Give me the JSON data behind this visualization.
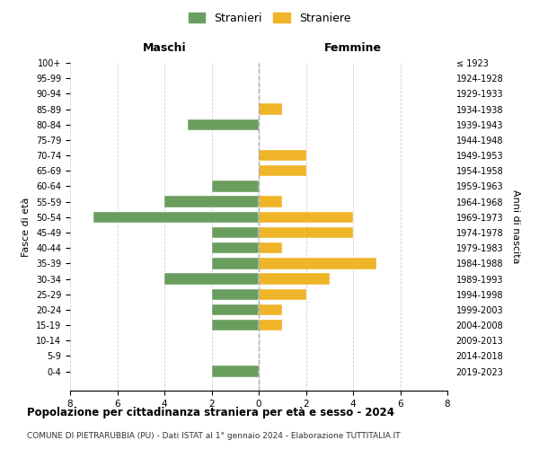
{
  "age_groups": [
    "100+",
    "95-99",
    "90-94",
    "85-89",
    "80-84",
    "75-79",
    "70-74",
    "65-69",
    "60-64",
    "55-59",
    "50-54",
    "45-49",
    "40-44",
    "35-39",
    "30-34",
    "25-29",
    "20-24",
    "15-19",
    "10-14",
    "5-9",
    "0-4"
  ],
  "birth_years": [
    "≤ 1923",
    "1924-1928",
    "1929-1933",
    "1934-1938",
    "1939-1943",
    "1944-1948",
    "1949-1953",
    "1954-1958",
    "1959-1963",
    "1964-1968",
    "1969-1973",
    "1974-1978",
    "1979-1983",
    "1984-1988",
    "1989-1993",
    "1994-1998",
    "1999-2003",
    "2004-2008",
    "2009-2013",
    "2014-2018",
    "2019-2023"
  ],
  "maschi": [
    0,
    0,
    0,
    0,
    3,
    0,
    0,
    0,
    2,
    4,
    7,
    2,
    2,
    2,
    4,
    2,
    2,
    2,
    0,
    0,
    2
  ],
  "femmine": [
    0,
    0,
    0,
    1,
    0,
    0,
    2,
    2,
    0,
    1,
    4,
    4,
    1,
    5,
    3,
    2,
    1,
    1,
    0,
    0,
    0
  ],
  "color_maschi": "#6a9e5e",
  "color_femmine": "#f0b429",
  "background_color": "#ffffff",
  "grid_color": "#d0d0d0",
  "title": "Popolazione per cittadinanza straniera per età e sesso - 2024",
  "subtitle": "COMUNE DI PIETRARUBBIA (PU) - Dati ISTAT al 1° gennaio 2024 - Elaborazione TUTTITALIA.IT",
  "xlabel_left": "Maschi",
  "xlabel_right": "Femmine",
  "ylabel_left": "Fasce di età",
  "ylabel_right": "Anni di nascita",
  "legend_maschi": "Stranieri",
  "legend_femmine": "Straniere",
  "xlim": 8
}
